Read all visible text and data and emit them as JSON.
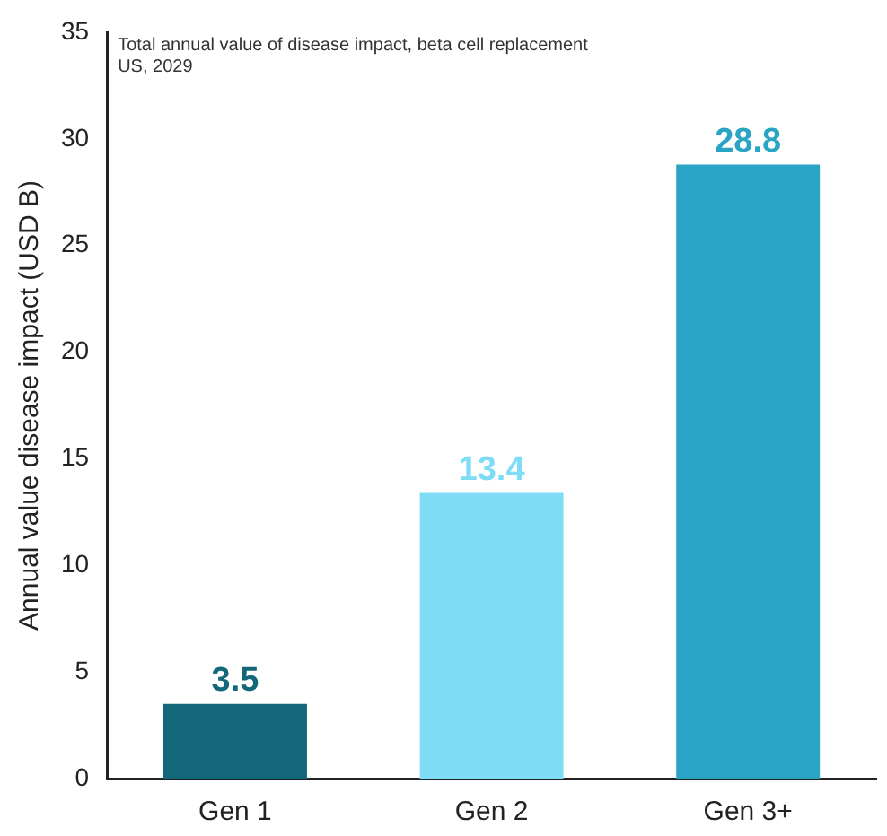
{
  "chart_data": {
    "type": "bar",
    "title": "Total annual value of disease impact, beta cell replacement",
    "subtitle": "US, 2029",
    "ylabel": "Annual value disease impact (USD B)",
    "categories": [
      "Gen 1",
      "Gen 2",
      "Gen 3+"
    ],
    "values": [
      3.5,
      13.4,
      28.8
    ],
    "colors": [
      "#13677a",
      "#7fdcf6",
      "#2aa4c4"
    ],
    "ylim": [
      0,
      35
    ],
    "yticks": [
      0,
      5,
      10,
      15,
      20,
      25,
      30,
      35
    ],
    "grid": false,
    "data_labels": true
  }
}
